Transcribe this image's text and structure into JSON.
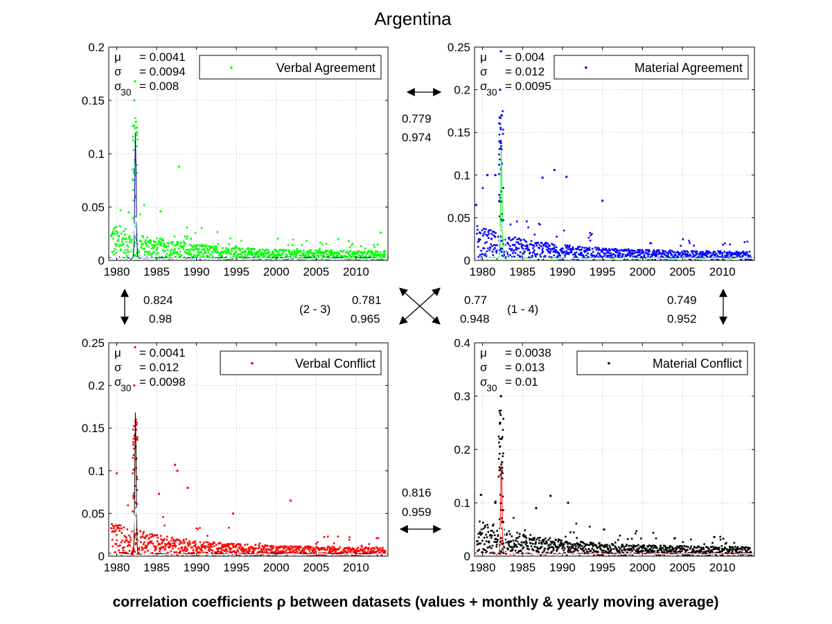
{
  "figure": {
    "title": "Argentina",
    "caption": "correlation coefficients ρ between datasets (values + monthly & yearly moving average)"
  },
  "correlations": [
    {
      "id": "1-2",
      "values": [
        "0.779",
        "0.974"
      ]
    },
    {
      "id": "1-3",
      "values": [
        "0.824",
        "0.98"
      ]
    },
    {
      "id": "2-3",
      "values": [
        "0.781",
        "0.965"
      ],
      "label": "(2 - 3)"
    },
    {
      "id": "1-4",
      "values": [
        "0.77",
        "0.948"
      ],
      "label": "(1 - 4)"
    },
    {
      "id": "2-4",
      "values": [
        "0.749",
        "0.952"
      ]
    },
    {
      "id": "3-4",
      "values": [
        "0.816",
        "0.959"
      ]
    }
  ],
  "chart_data": [
    {
      "type": "scatter",
      "legend": "Verbal Agreement",
      "legend_placement": "top-right",
      "grid": true,
      "color": "#00ff00",
      "avg_color": "#0000a0",
      "yearly_color": "#ffffff",
      "xlim": [
        1979,
        2014
      ],
      "ylim": [
        0,
        0.2
      ],
      "xticks": [
        "1980",
        "1985",
        "1990",
        "1995",
        "2000",
        "2005",
        "2010"
      ],
      "yticks": [
        "0",
        "0.05",
        "0.1",
        "0.15",
        "0.2"
      ],
      "stats": [
        {
          "sym": "μ",
          "sub": "",
          "val": "= 0.0041"
        },
        {
          "sym": "σ",
          "sub": "",
          "val": "= 0.0094"
        },
        {
          "sym": "σ",
          "sub": "30",
          "val": "= 0.008"
        }
      ],
      "baseline": 0.005,
      "peaks": [
        {
          "x": 1982.3,
          "y": 0.168
        },
        {
          "x": 1982.2,
          "y": 0.15
        },
        {
          "x": 1982.4,
          "y": 0.13
        },
        {
          "x": 1982.0,
          "y": 0.076
        },
        {
          "x": 1987.8,
          "y": 0.088
        },
        {
          "x": 1985.5,
          "y": 0.046
        },
        {
          "x": 1981.5,
          "y": 0.045
        },
        {
          "x": 2013.1,
          "y": 0.026
        }
      ],
      "avg_peak": 0.12
    },
    {
      "type": "scatter",
      "legend": "Material Agreement",
      "legend_placement": "top-right",
      "grid": true,
      "color": "#0000ff",
      "avg_color": "#00ff00",
      "yearly_color": "#ffffff",
      "xlim": [
        1979,
        2014
      ],
      "ylim": [
        0,
        0.25
      ],
      "xticks": [
        "1980",
        "1985",
        "1990",
        "1995",
        "2000",
        "2005",
        "2010"
      ],
      "yticks": [
        "0",
        "0.05",
        "0.1",
        "0.15",
        "0.2",
        "0.25"
      ],
      "stats": [
        {
          "sym": "μ",
          "sub": "",
          "val": "= 0.004"
        },
        {
          "sym": "σ",
          "sub": "",
          "val": "= 0.012"
        },
        {
          "sym": "σ",
          "sub": "30",
          "val": "= 0.0095"
        }
      ],
      "baseline": 0.006,
      "peaks": [
        {
          "x": 1982.3,
          "y": 0.245
        },
        {
          "x": 1982.2,
          "y": 0.2
        },
        {
          "x": 1982.4,
          "y": 0.17
        },
        {
          "x": 1980.6,
          "y": 0.1
        },
        {
          "x": 1981.6,
          "y": 0.1
        },
        {
          "x": 1989.0,
          "y": 0.106
        },
        {
          "x": 1990.5,
          "y": 0.098
        },
        {
          "x": 1987.5,
          "y": 0.097
        },
        {
          "x": 1979.2,
          "y": 0.065
        },
        {
          "x": 1995.0,
          "y": 0.07
        }
      ],
      "avg_peak": 0.13
    },
    {
      "type": "scatter",
      "legend": "Verbal Conflict",
      "legend_placement": "top-right",
      "grid": true,
      "color": "#ff0000",
      "avg_color": "#000000",
      "yearly_color": "#ffffff",
      "xlim": [
        1979,
        2014
      ],
      "ylim": [
        0,
        0.25
      ],
      "xticks": [
        "1980",
        "1985",
        "1990",
        "1995",
        "2000",
        "2005",
        "2010"
      ],
      "yticks": [
        "0",
        "0.05",
        "0.1",
        "0.15",
        "0.2",
        "0.25"
      ],
      "stats": [
        {
          "sym": "μ",
          "sub": "",
          "val": "= 0.0041"
        },
        {
          "sym": "σ",
          "sub": "",
          "val": "= 0.012"
        },
        {
          "sym": "σ",
          "sub": "30",
          "val": "= 0.0098"
        }
      ],
      "baseline": 0.006,
      "peaks": [
        {
          "x": 1982.3,
          "y": 0.245
        },
        {
          "x": 1982.2,
          "y": 0.2
        },
        {
          "x": 1982.4,
          "y": 0.16
        },
        {
          "x": 1980.0,
          "y": 0.097
        },
        {
          "x": 1987.3,
          "y": 0.107
        },
        {
          "x": 1987.6,
          "y": 0.1
        },
        {
          "x": 1988.9,
          "y": 0.08
        },
        {
          "x": 2001.8,
          "y": 0.065
        },
        {
          "x": 1994.6,
          "y": 0.05
        },
        {
          "x": 1985.3,
          "y": 0.073
        }
      ],
      "avg_peak": 0.17
    },
    {
      "type": "scatter",
      "legend": "Material Conflict",
      "legend_placement": "top-right",
      "grid": true,
      "color": "#000000",
      "avg_color": "#ff0000",
      "yearly_color": "#ffffff",
      "xlim": [
        1979,
        2014
      ],
      "ylim": [
        0,
        0.4
      ],
      "xticks": [
        "1980",
        "1985",
        "1990",
        "1995",
        "2000",
        "2005",
        "2010"
      ],
      "yticks": [
        "0",
        "0.1",
        "0.2",
        "0.3",
        "0.4"
      ],
      "stats": [
        {
          "sym": "μ",
          "sub": "",
          "val": "= 0.0038"
        },
        {
          "sym": "σ",
          "sub": "",
          "val": "= 0.013"
        },
        {
          "sym": "σ",
          "sub": "30",
          "val": "= 0.01"
        }
      ],
      "baseline": 0.01,
      "peaks": [
        {
          "x": 1982.3,
          "y": 0.3
        },
        {
          "x": 1982.2,
          "y": 0.25
        },
        {
          "x": 1982.4,
          "y": 0.22
        },
        {
          "x": 1979.8,
          "y": 0.115
        },
        {
          "x": 1981.6,
          "y": 0.1
        },
        {
          "x": 1988.5,
          "y": 0.113
        },
        {
          "x": 1990.7,
          "y": 0.1
        },
        {
          "x": 1986.7,
          "y": 0.09
        },
        {
          "x": 1995.2,
          "y": 0.05
        }
      ],
      "avg_peak": 0.18
    }
  ]
}
